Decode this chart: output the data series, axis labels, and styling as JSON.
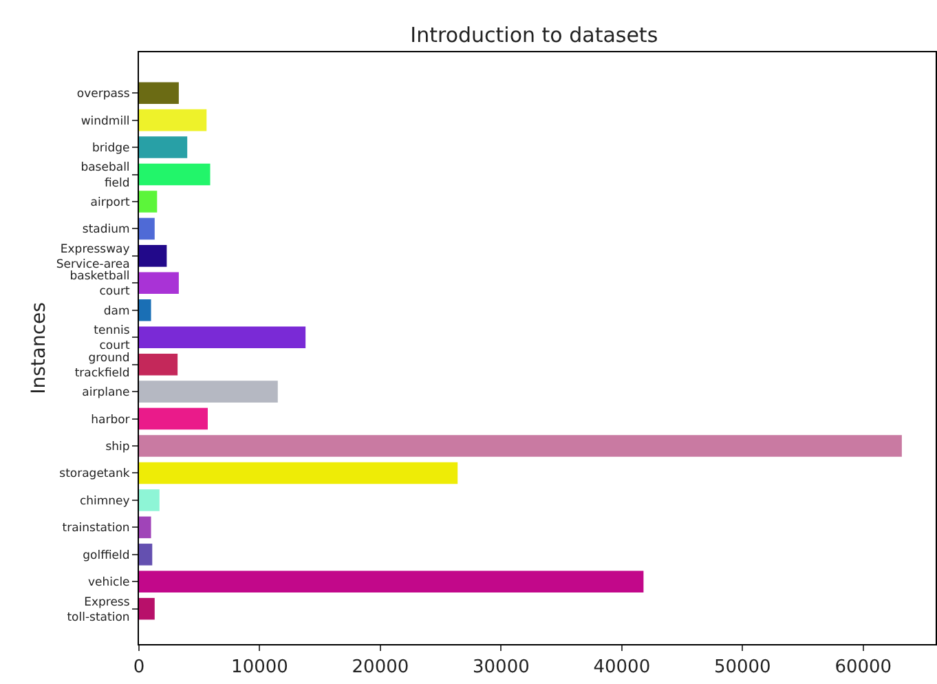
{
  "chart_data": {
    "type": "bar",
    "orientation": "horizontal",
    "title": "Introduction to datasets",
    "ylabel": "Instances",
    "categories": [
      "overpass",
      "windmill",
      "bridge",
      "baseball\nfield",
      "airport",
      "stadium",
      "Expressway\nService-area",
      "basketball\ncourt",
      "dam",
      "tennis\ncourt",
      "ground\ntrackfield",
      "airplane",
      "harbor",
      "ship",
      "storagetank",
      "chimney",
      "trainstation",
      "golffield",
      "vehicle",
      "Express\ntoll-station"
    ],
    "values": [
      3300,
      5600,
      4000,
      5900,
      1500,
      1300,
      2300,
      3300,
      1000,
      13800,
      3200,
      11500,
      5700,
      63200,
      26400,
      1700,
      1000,
      1100,
      41800,
      1300
    ],
    "colors": [
      "#6b6b14",
      "#eef22a",
      "#28a0a6",
      "#22f56a",
      "#5cf53a",
      "#4f6ad6",
      "#22098a",
      "#a933d6",
      "#1a6fb5",
      "#7a2ad6",
      "#c4285a",
      "#b5b8c2",
      "#ea1b8a",
      "#c97aa2",
      "#eeec06",
      "#8ef5d6",
      "#a044b8",
      "#6450b0",
      "#c2088a",
      "#b8106a"
    ],
    "xlim": [
      0,
      66000
    ],
    "xticks": [
      0,
      10000,
      20000,
      30000,
      40000,
      50000,
      60000
    ],
    "grid": false
  }
}
